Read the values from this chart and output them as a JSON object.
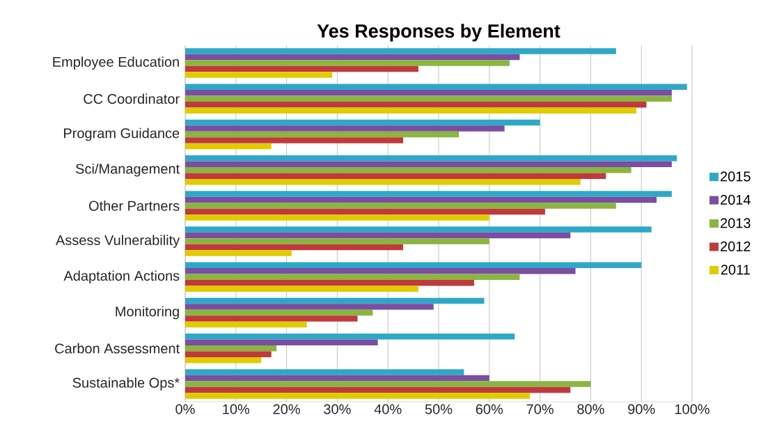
{
  "chart_data": {
    "type": "bar",
    "orientation": "horizontal",
    "title": "Yes Responses by Element",
    "categories": [
      "Employee Education",
      "CC Coordinator",
      "Program Guidance",
      "Sci/Management",
      "Other Partners",
      "Assess Vulnerability",
      "Adaptation Actions",
      "Monitoring",
      "Carbon Assessment",
      "Sustainable Ops*"
    ],
    "series": [
      {
        "name": "2015",
        "color": "#2fa8c8",
        "values": [
          85,
          99,
          70,
          97,
          96,
          92,
          90,
          59,
          65,
          55
        ]
      },
      {
        "name": "2014",
        "color": "#7a4ea0",
        "values": [
          66,
          96,
          63,
          96,
          93,
          76,
          77,
          49,
          38,
          60
        ]
      },
      {
        "name": "2013",
        "color": "#8ab540",
        "values": [
          64,
          96,
          54,
          88,
          85,
          60,
          66,
          37,
          18,
          80
        ]
      },
      {
        "name": "2012",
        "color": "#c0393b",
        "values": [
          46,
          91,
          43,
          83,
          71,
          43,
          57,
          34,
          17,
          76
        ]
      },
      {
        "name": "2011",
        "color": "#e0cc00",
        "values": [
          29,
          89,
          17,
          78,
          60,
          21,
          46,
          24,
          15,
          68
        ]
      }
    ],
    "xlim": [
      0,
      100
    ],
    "xticks": [
      {
        "value": 0,
        "label": "0%"
      },
      {
        "value": 10,
        "label": "10%"
      },
      {
        "value": 20,
        "label": "20%"
      },
      {
        "value": 30,
        "label": "30%"
      },
      {
        "value": 40,
        "label": "40%"
      },
      {
        "value": 50,
        "label": "50%"
      },
      {
        "value": 60,
        "label": "60%"
      },
      {
        "value": 70,
        "label": "70%"
      },
      {
        "value": 80,
        "label": "80%"
      },
      {
        "value": 90,
        "label": "90%"
      },
      {
        "value": 100,
        "label": "100%"
      }
    ],
    "grid": "x",
    "legend": "right"
  }
}
